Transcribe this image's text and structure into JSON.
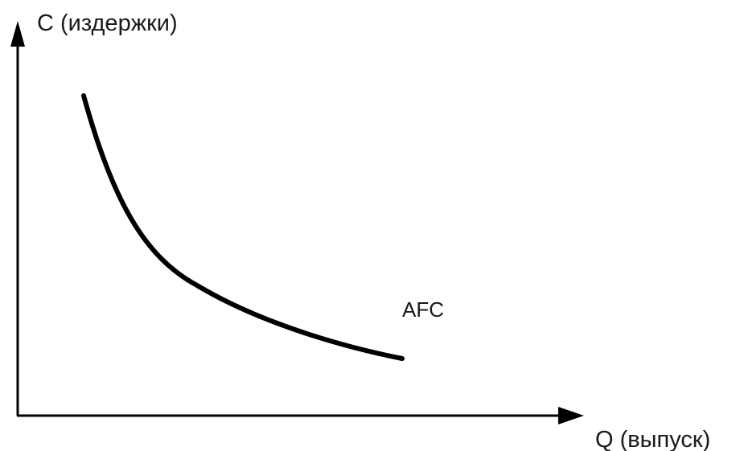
{
  "diagram": {
    "y_axis_label": "C (издержки)",
    "x_axis_label": "Q (выпуск)",
    "curve_label": "AFC",
    "curve_shape": "decreasing-hyperbola",
    "line_color": "#000000"
  }
}
